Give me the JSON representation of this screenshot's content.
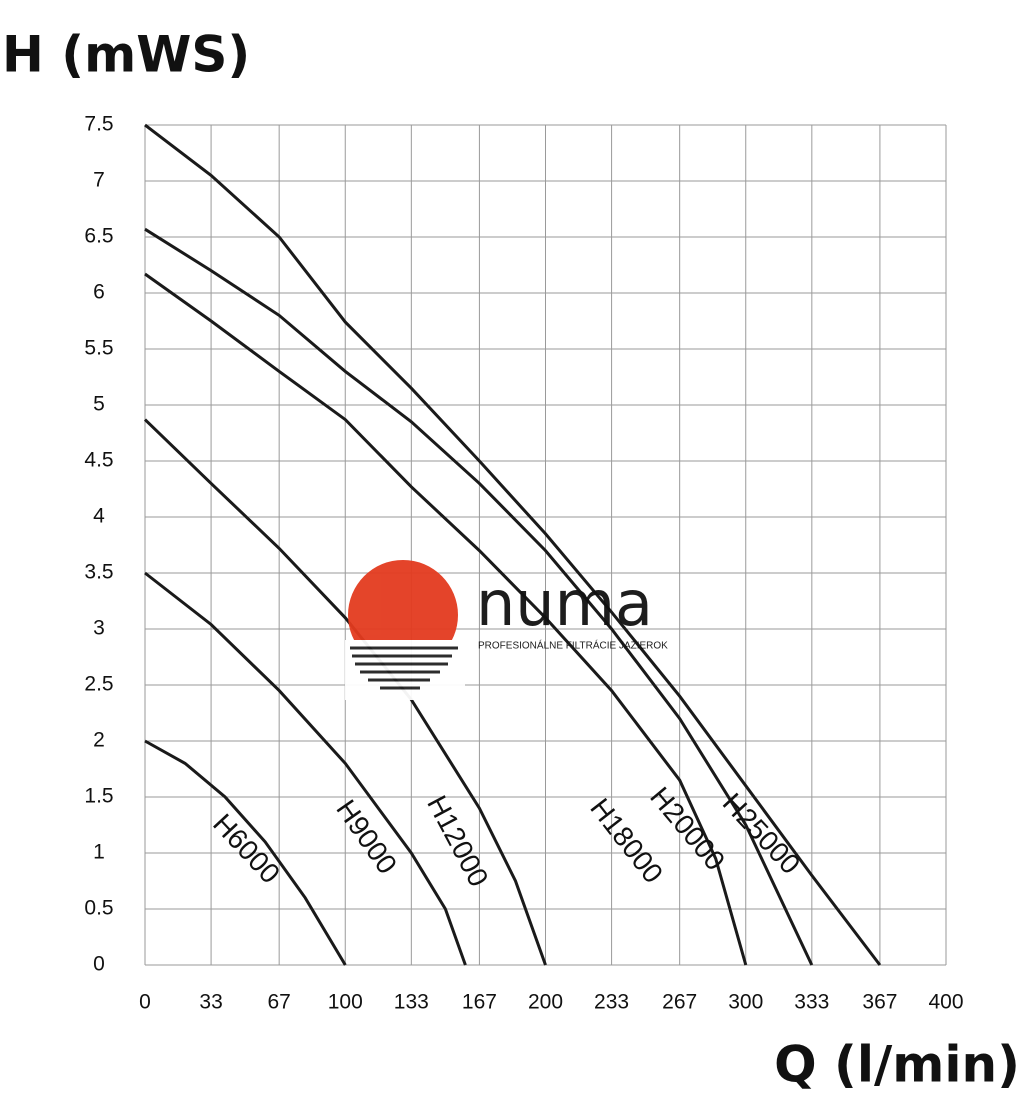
{
  "chart_data": {
    "type": "line",
    "y_label": "H (mWS)",
    "x_label": "Q (l/min)",
    "xlim": [
      0,
      400
    ],
    "ylim": [
      0,
      7.5
    ],
    "xticks": [
      0,
      33,
      67,
      100,
      133,
      167,
      200,
      233,
      267,
      300,
      333,
      367,
      400
    ],
    "yticks": [
      0,
      0.5,
      1,
      1.5,
      2,
      2.5,
      3,
      3.5,
      4,
      4.5,
      5,
      5.5,
      6,
      6.5,
      7,
      7.5
    ],
    "grid": true,
    "series": [
      {
        "name": "H6000",
        "color": "#1a1a1a",
        "x": [
          0,
          20,
          40,
          60,
          80,
          100
        ],
        "values": [
          2,
          1.8,
          1.5,
          1.1,
          0.6,
          0
        ]
      },
      {
        "name": "H9000",
        "color": "#1a1a1a",
        "x": [
          0,
          33,
          67,
          100,
          133,
          150,
          160
        ],
        "values": [
          3.5,
          3.04,
          2.45,
          1.8,
          1.0,
          0.5,
          0
        ]
      },
      {
        "name": "H12000",
        "color": "#1a1a1a",
        "x": [
          0,
          33,
          67,
          100,
          133,
          167,
          185,
          200
        ],
        "values": [
          4.87,
          4.3,
          3.72,
          3.1,
          2.37,
          1.4,
          0.75,
          0
        ]
      },
      {
        "name": "H18000",
        "color": "#1a1a1a",
        "x": [
          0,
          33,
          67,
          100,
          133,
          167,
          200,
          233,
          267,
          285,
          300
        ],
        "values": [
          6.17,
          5.75,
          5.3,
          4.87,
          4.27,
          3.7,
          3.1,
          2.45,
          1.65,
          0.95,
          0
        ]
      },
      {
        "name": "H20000",
        "color": "#1a1a1a",
        "x": [
          0,
          33,
          67,
          100,
          133,
          167,
          200,
          233,
          267,
          300,
          333
        ],
        "values": [
          6.57,
          6.2,
          5.8,
          5.3,
          4.85,
          4.3,
          3.7,
          3.0,
          2.2,
          1.25,
          0
        ]
      },
      {
        "name": "H25000",
        "color": "#1a1a1a",
        "x": [
          0,
          33,
          67,
          100,
          133,
          167,
          200,
          233,
          267,
          300,
          333,
          367
        ],
        "values": [
          7.5,
          7.05,
          6.5,
          5.74,
          5.15,
          4.5,
          3.85,
          3.15,
          2.4,
          1.6,
          0.8,
          0
        ]
      }
    ]
  },
  "watermark": {
    "brand": "numa",
    "tagline": "PROFESIONÁLNE FILTRÁCIE JAZIEROK"
  }
}
